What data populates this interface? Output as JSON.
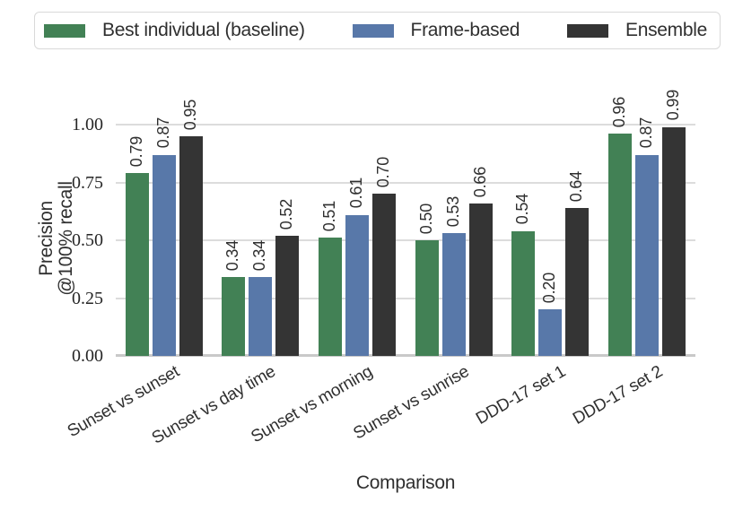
{
  "figure": {
    "background": "#ffffff"
  },
  "chart_data": {
    "type": "bar",
    "title": "",
    "categories": [
      "Sunset vs sunset",
      "Sunset vs day time",
      "Sunset vs morning",
      "Sunset vs sunrise",
      "DDD-17 set 1",
      "DDD-17 set 2"
    ],
    "series": [
      {
        "name": "Best individual (baseline)",
        "color": "#428155",
        "values": [
          0.79,
          0.34,
          0.51,
          0.5,
          0.54,
          0.96
        ]
      },
      {
        "name": "Frame-based",
        "color": "#5878a9",
        "values": [
          0.87,
          0.34,
          0.61,
          0.53,
          0.2,
          0.87
        ]
      },
      {
        "name": "Ensemble",
        "color": "#343434",
        "values": [
          0.95,
          0.52,
          0.7,
          0.66,
          0.64,
          0.99
        ]
      }
    ],
    "bar_value_labels": [
      [
        "0.79",
        "0.34",
        "0.51",
        "0.50",
        "0.54",
        "0.96"
      ],
      [
        "0.87",
        "0.34",
        "0.61",
        "0.53",
        "0.20",
        "0.87"
      ],
      [
        "0.95",
        "0.52",
        "0.70",
        "0.66",
        "0.64",
        "0.99"
      ]
    ],
    "xlabel": "Comparison",
    "ylabel": "Precision @100% recall",
    "ylabel_lines": [
      "Precision",
      "@100% recall"
    ],
    "yticks": [
      0.0,
      0.25,
      0.5,
      0.75,
      1.0
    ],
    "ytick_labels": [
      "0.00",
      "0.25",
      "0.50",
      "0.75",
      "1.00"
    ],
    "ylim": [
      0,
      1.05
    ],
    "grid": "horizontal-only",
    "legend_position": "top",
    "bar_labels_rotated_degrees": 90,
    "xtick_rotation_degrees": 30
  },
  "style": {
    "gridline_color": "#dcdcdc",
    "baseline_color": "#c9c9c9",
    "legend_border_color": "#d9d9d9",
    "text_color": "#2f2f2f"
  }
}
